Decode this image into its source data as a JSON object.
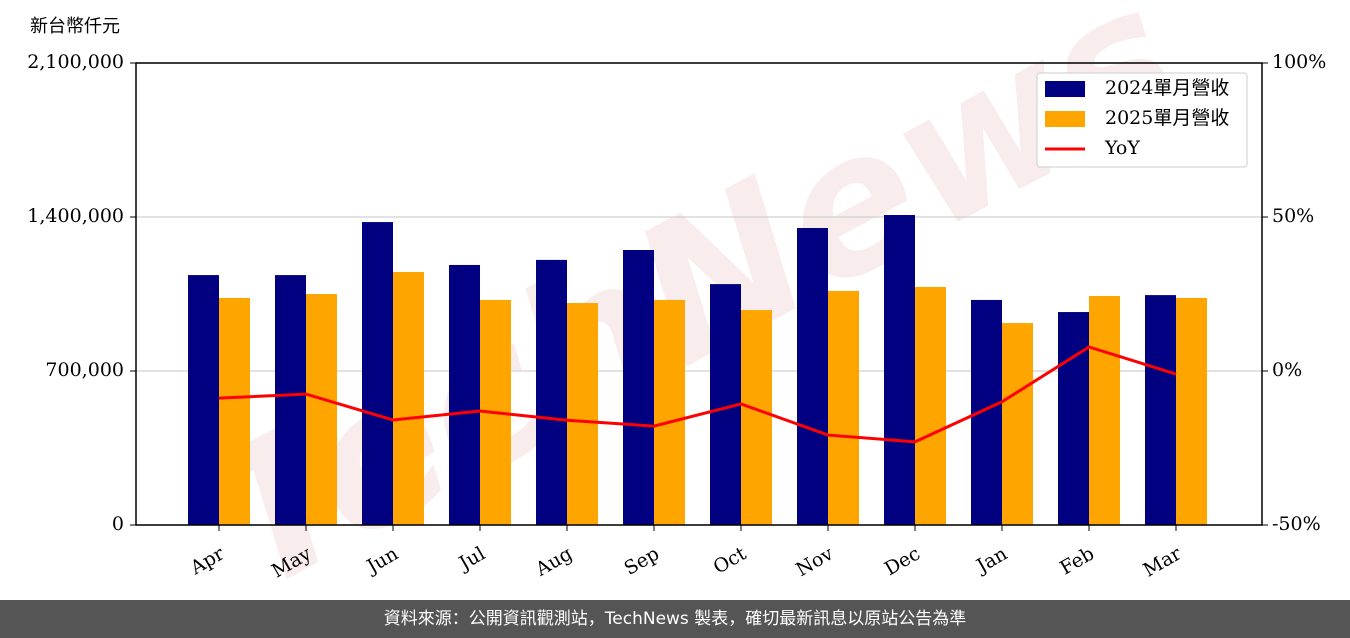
{
  "chart_data": {
    "type": "bar",
    "y_label": "新台幣仟元",
    "watermark": "TechNews",
    "categories": [
      "Apr",
      "May",
      "Jun",
      "Jul",
      "Aug",
      "Sep",
      "Oct",
      "Nov",
      "Dec",
      "Jan",
      "Feb",
      "Mar"
    ],
    "series": [
      {
        "name": "2024單月營收",
        "color": "#000080",
        "values": [
          1136000,
          1136000,
          1377000,
          1182000,
          1205000,
          1250000,
          1095000,
          1350000,
          1409000,
          1023000,
          968000,
          1045000
        ]
      },
      {
        "name": "2025單月營收",
        "color": "#ffa500",
        "values": [
          1032000,
          1050000,
          1150000,
          1023000,
          1009000,
          1023000,
          977000,
          1064000,
          1082000,
          918000,
          1041000,
          1032000
        ]
      },
      {
        "name": "YoY",
        "color": "#ff0000",
        "type": "line",
        "axis": "y2",
        "values": [
          -8.8,
          -7.5,
          -15.9,
          -13,
          -16,
          -17.9,
          -10.7,
          -20.8,
          -23,
          -10,
          7.8,
          -1
        ]
      }
    ],
    "ylim": [
      0,
      2100000
    ],
    "yticks": [
      {
        "value": 0,
        "label": "0"
      },
      {
        "value": 700000,
        "label": "700,000"
      },
      {
        "value": 1400000,
        "label": "1,400,000"
      },
      {
        "value": 2100000,
        "label": "2,100,000"
      }
    ],
    "y2lim": [
      -50,
      100
    ],
    "y2ticks": [
      {
        "value": -50,
        "label": "-50%"
      },
      {
        "value": 0,
        "label": "0%"
      },
      {
        "value": 50,
        "label": "50%"
      },
      {
        "value": 100,
        "label": "100%"
      }
    ],
    "grid": true,
    "legend": "upper right",
    "footer": "資料來源：公開資訊觀測站，TechNews 製表，確切最新訊息以原站公告為準"
  }
}
